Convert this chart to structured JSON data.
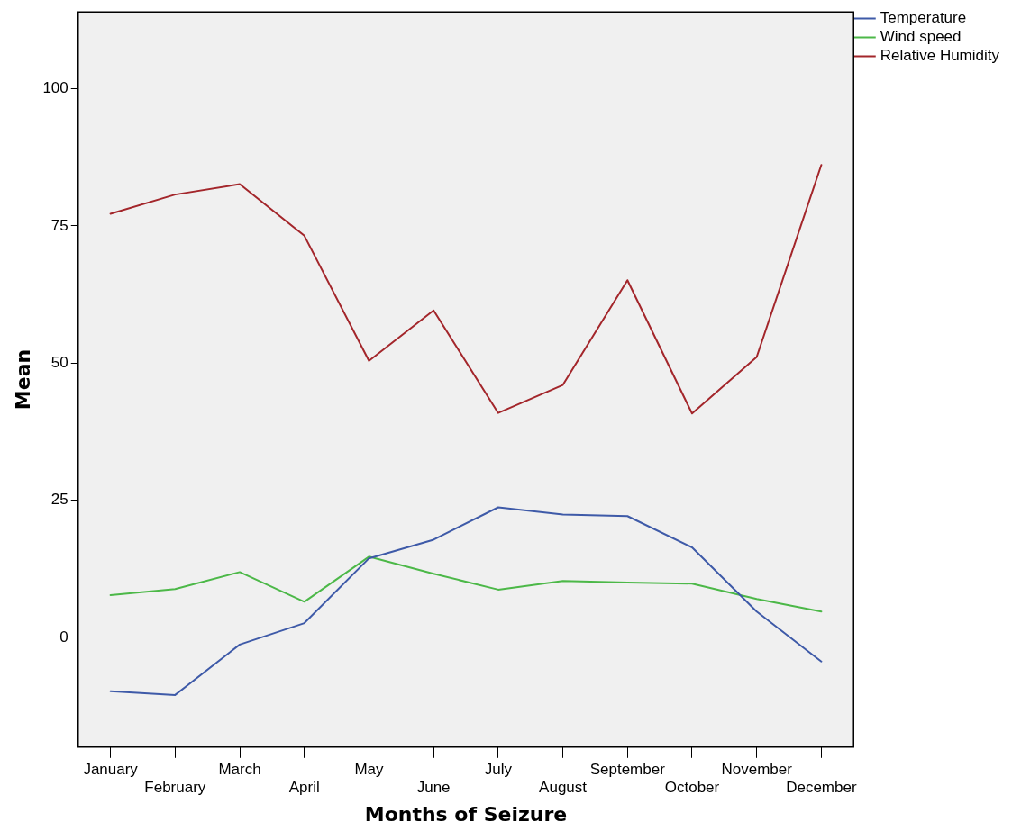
{
  "chart_data": {
    "type": "line",
    "xlabel": "Months of Seizure",
    "ylabel": "Mean",
    "categories": [
      "January",
      "February",
      "March",
      "April",
      "May",
      "June",
      "July",
      "August",
      "September",
      "October",
      "November",
      "December"
    ],
    "series": [
      {
        "name": "Temperature",
        "color": "#3e5aa8",
        "values": [
          -9.8,
          -10.5,
          -1.3,
          2.6,
          14.4,
          17.8,
          23.7,
          22.4,
          22.1,
          16.4,
          4.7,
          -4.4
        ]
      },
      {
        "name": "Wind speed",
        "color": "#4cb848",
        "values": [
          7.7,
          8.8,
          11.9,
          6.5,
          14.7,
          11.6,
          8.7,
          10.3,
          10.0,
          9.8,
          7.0,
          4.7
        ]
      },
      {
        "name": "Relative Humidity",
        "color": "#a3262b",
        "values": [
          77.2,
          80.7,
          82.6,
          73.2,
          50.4,
          59.6,
          40.9,
          46.0,
          65.1,
          40.8,
          51.1,
          86.1
        ]
      }
    ],
    "ylim": [
      -20,
      114
    ],
    "yticks": [
      0,
      25,
      50,
      75,
      100
    ],
    "grid": false,
    "legend": "top right",
    "marker": "none",
    "line_style": "solid"
  }
}
